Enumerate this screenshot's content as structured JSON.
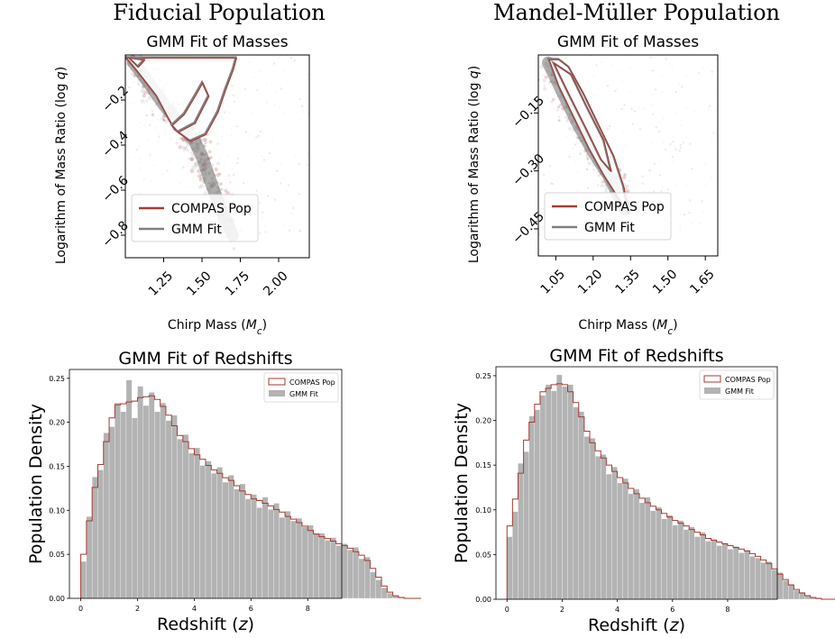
{
  "figure": {
    "columns": [
      {
        "title": "Fiducial Population"
      },
      {
        "title": "Mandel-Müller Population"
      }
    ]
  },
  "colors": {
    "compas": "#a83a32",
    "gmm_line": "#808080",
    "gmm_fill": "#b3b3b3",
    "cloud": "#c9c9c9"
  },
  "chart_data": [
    {
      "type": "scatter",
      "panel": "fiducial-mass",
      "title": "GMM Fit of Masses",
      "xlabel": "Chirp Mass (M_c)",
      "ylabel": "Logarithm of Mass Ratio (log q)",
      "xlim": [
        1.0,
        2.2
      ],
      "ylim": [
        -0.9,
        0.0
      ],
      "xticks": [
        1.25,
        1.5,
        1.75,
        2.0
      ],
      "xtick_labels": [
        "1.25",
        "1.50",
        "1.75",
        "2.00"
      ],
      "yticks": [
        -0.2,
        -0.4,
        -0.6,
        -0.8
      ],
      "ytick_labels": [
        "−0.2",
        "−0.4",
        "−0.6",
        "−0.8"
      ],
      "legend": {
        "position": "lower-left",
        "entries": [
          "COMPAS Pop",
          "GMM Fit"
        ]
      },
      "density_ridge": [
        [
          1.05,
          -0.03
        ],
        [
          1.15,
          -0.12
        ],
        [
          1.25,
          -0.22
        ],
        [
          1.35,
          -0.3
        ],
        [
          1.45,
          -0.38
        ],
        [
          1.5,
          -0.45
        ],
        [
          1.55,
          -0.55
        ],
        [
          1.62,
          -0.68
        ],
        [
          1.7,
          -0.8
        ]
      ],
      "contours": [
        [
          [
            1.0,
            -0.01
          ],
          [
            1.05,
            -0.05
          ],
          [
            1.12,
            -0.11
          ],
          [
            1.2,
            -0.18
          ],
          [
            1.27,
            -0.27
          ],
          [
            1.32,
            -0.33
          ],
          [
            1.42,
            -0.38
          ],
          [
            1.52,
            -0.35
          ],
          [
            1.6,
            -0.25
          ],
          [
            1.65,
            -0.15
          ],
          [
            1.7,
            -0.06
          ],
          [
            1.72,
            -0.01
          ]
        ],
        [
          [
            1.02,
            -0.01
          ],
          [
            1.08,
            -0.05
          ],
          [
            1.12,
            -0.02
          ]
        ],
        [
          [
            1.3,
            -0.31
          ],
          [
            1.38,
            -0.26
          ],
          [
            1.45,
            -0.18
          ],
          [
            1.5,
            -0.12
          ],
          [
            1.54,
            -0.18
          ],
          [
            1.45,
            -0.3
          ],
          [
            1.34,
            -0.34
          ],
          [
            1.3,
            -0.31
          ]
        ]
      ]
    },
    {
      "type": "scatter",
      "panel": "mm-mass",
      "title": "GMM Fit of Masses",
      "xlabel": "Chirp Mass (M_c)",
      "ylabel": "Logarithm of Mass Ratio (log q)",
      "xlim": [
        0.98,
        1.7
      ],
      "ylim": [
        -0.52,
        0.0
      ],
      "xticks": [
        1.05,
        1.2,
        1.35,
        1.5,
        1.65
      ],
      "xtick_labels": [
        "1.05",
        "1.20",
        "1.35",
        "1.50",
        "1.65"
      ],
      "yticks": [
        -0.15,
        -0.3,
        -0.45
      ],
      "ytick_labels": [
        "−0.15",
        "−0.30",
        "−0.45"
      ],
      "legend": {
        "position": "lower-left",
        "entries": [
          "COMPAS Pop",
          "GMM Fit"
        ]
      },
      "density_ridge": [
        [
          1.02,
          -0.02
        ],
        [
          1.08,
          -0.1
        ],
        [
          1.14,
          -0.18
        ],
        [
          1.2,
          -0.25
        ],
        [
          1.26,
          -0.31
        ],
        [
          1.3,
          -0.36
        ],
        [
          1.33,
          -0.4
        ]
      ],
      "contours": [
        [
          [
            1.02,
            -0.01
          ],
          [
            1.06,
            -0.08
          ],
          [
            1.12,
            -0.16
          ],
          [
            1.18,
            -0.24
          ],
          [
            1.24,
            -0.31
          ],
          [
            1.3,
            -0.37
          ],
          [
            1.34,
            -0.41
          ],
          [
            1.32,
            -0.34
          ],
          [
            1.28,
            -0.26
          ],
          [
            1.22,
            -0.18
          ],
          [
            1.16,
            -0.1
          ],
          [
            1.1,
            -0.03
          ],
          [
            1.06,
            -0.01
          ]
        ],
        [
          [
            1.04,
            -0.02
          ],
          [
            1.1,
            -0.1
          ],
          [
            1.17,
            -0.19
          ],
          [
            1.23,
            -0.27
          ],
          [
            1.27,
            -0.3
          ],
          [
            1.24,
            -0.22
          ],
          [
            1.17,
            -0.13
          ],
          [
            1.11,
            -0.05
          ]
        ]
      ]
    },
    {
      "type": "bar",
      "panel": "fiducial-redshift",
      "title": "GMM Fit of Redshifts",
      "xlabel": "Redshift (z)",
      "ylabel": "Population Density",
      "xlim": [
        -0.4,
        9.2
      ],
      "ylim": [
        0,
        0.26
      ],
      "xticks": [
        0,
        2,
        4,
        6,
        8
      ],
      "yticks": [
        0,
        0.05,
        0.1,
        0.15,
        0.2,
        0.25
      ],
      "ytick_labels": [
        "0.00",
        "0.05",
        "0.10",
        "0.15",
        "0.20",
        "0.25"
      ],
      "legend": {
        "position": "top-right",
        "entries": [
          "COMPAS Pop",
          "GMM Fit"
        ]
      },
      "bin_width": 0.2,
      "series": [
        {
          "name": "COMPAS Pop",
          "values": [
            0.05,
            0.088,
            0.126,
            0.152,
            0.178,
            0.205,
            0.22,
            0.221,
            0.223,
            0.224,
            0.228,
            0.229,
            0.23,
            0.226,
            0.218,
            0.208,
            0.196,
            0.185,
            0.178,
            0.17,
            0.163,
            0.158,
            0.151,
            0.146,
            0.142,
            0.137,
            0.134,
            0.128,
            0.122,
            0.118,
            0.113,
            0.111,
            0.108,
            0.105,
            0.101,
            0.098,
            0.093,
            0.09,
            0.086,
            0.082,
            0.077,
            0.073,
            0.07,
            0.068,
            0.065,
            0.062,
            0.06,
            0.057,
            0.053,
            0.049,
            0.043,
            0.034,
            0.024,
            0.014,
            0.007,
            0.003,
            0.001,
            0.0,
            0.0,
            0.0
          ]
        },
        {
          "name": "GMM Fit",
          "values": [
            0.042,
            0.093,
            0.138,
            0.146,
            0.188,
            0.195,
            0.222,
            0.212,
            0.248,
            0.205,
            0.241,
            0.219,
            0.234,
            0.212,
            0.222,
            0.202,
            0.208,
            0.181,
            0.186,
            0.165,
            0.171,
            0.151,
            0.156,
            0.142,
            0.149,
            0.132,
            0.14,
            0.124,
            0.13,
            0.113,
            0.118,
            0.103,
            0.115,
            0.101,
            0.108,
            0.092,
            0.099,
            0.088,
            0.091,
            0.081,
            0.083,
            0.074,
            0.074,
            0.066,
            0.069,
            0.06,
            0.062,
            0.055,
            0.058,
            0.045,
            0.047,
            0.03,
            0.021,
            0.012,
            0.006,
            0.003,
            0.001,
            0.0,
            0.0,
            0.0
          ]
        }
      ]
    },
    {
      "type": "bar",
      "panel": "mm-redshift",
      "title": "GMM Fit of Redshifts",
      "xlabel": "Redshift (z)",
      "ylabel": "Population Density",
      "xlim": [
        -0.4,
        9.8
      ],
      "ylim": [
        0,
        0.26
      ],
      "xticks": [
        0,
        2,
        4,
        6,
        8
      ],
      "yticks": [
        0,
        0.05,
        0.1,
        0.15,
        0.2,
        0.25
      ],
      "ytick_labels": [
        "0.00",
        "0.05",
        "0.10",
        "0.15",
        "0.20",
        "0.25"
      ],
      "legend": {
        "position": "top-right",
        "entries": [
          "COMPAS Pop",
          "GMM Fit"
        ]
      },
      "bin_width": 0.2,
      "series": [
        {
          "name": "COMPAS Pop",
          "values": [
            0.082,
            0.112,
            0.141,
            0.178,
            0.198,
            0.218,
            0.232,
            0.236,
            0.24,
            0.241,
            0.24,
            0.232,
            0.22,
            0.204,
            0.188,
            0.175,
            0.166,
            0.158,
            0.15,
            0.143,
            0.136,
            0.13,
            0.124,
            0.118,
            0.113,
            0.108,
            0.104,
            0.1,
            0.096,
            0.092,
            0.088,
            0.085,
            0.082,
            0.078,
            0.075,
            0.072,
            0.068,
            0.066,
            0.064,
            0.062,
            0.06,
            0.058,
            0.056,
            0.054,
            0.051,
            0.048,
            0.044,
            0.04,
            0.034,
            0.028,
            0.022,
            0.016,
            0.011,
            0.007,
            0.004,
            0.002,
            0.001,
            0.0,
            0.0,
            0.0
          ]
        },
        {
          "name": "GMM Fit",
          "values": [
            0.07,
            0.098,
            0.152,
            0.165,
            0.205,
            0.212,
            0.228,
            0.24,
            0.233,
            0.251,
            0.238,
            0.24,
            0.215,
            0.21,
            0.182,
            0.18,
            0.16,
            0.162,
            0.14,
            0.148,
            0.13,
            0.135,
            0.118,
            0.123,
            0.108,
            0.114,
            0.099,
            0.103,
            0.09,
            0.094,
            0.083,
            0.088,
            0.078,
            0.081,
            0.07,
            0.075,
            0.065,
            0.067,
            0.06,
            0.063,
            0.056,
            0.059,
            0.052,
            0.055,
            0.048,
            0.046,
            0.041,
            0.042,
            0.033,
            0.03,
            0.021,
            0.017,
            0.01,
            0.008,
            0.004,
            0.002,
            0.001,
            0.0,
            0.0,
            0.0
          ]
        }
      ]
    }
  ]
}
